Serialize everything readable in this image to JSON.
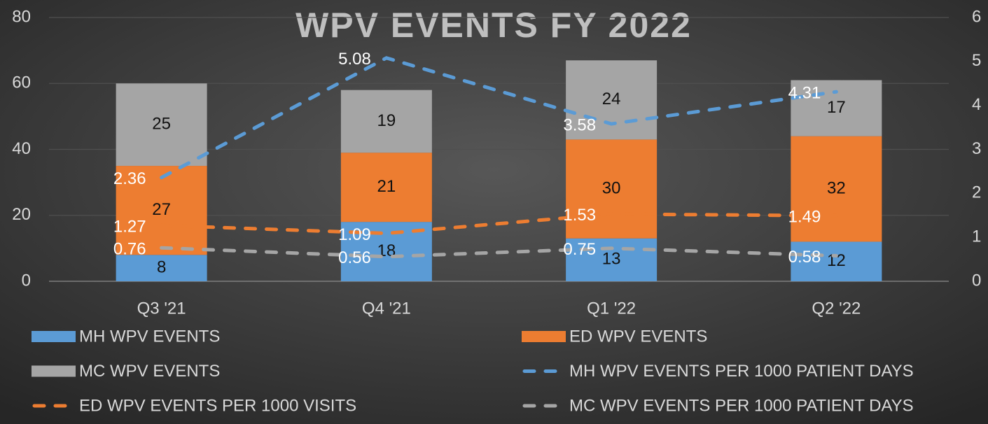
{
  "chart_data": {
    "type": "bar",
    "stacked": true,
    "title": "WPV EVENTS FY 2022",
    "categories": [
      "Q3 '21",
      "Q4 '21",
      "Q1 '22",
      "Q2 '22"
    ],
    "series": [
      {
        "name": "MH WPV EVENTS",
        "type": "bar",
        "color": "#5b9bd5",
        "values": [
          8,
          18,
          13,
          12
        ]
      },
      {
        "name": "ED WPV EVENTS",
        "type": "bar",
        "color": "#ed7d31",
        "values": [
          27,
          21,
          30,
          32
        ]
      },
      {
        "name": "MC WPV EVENTS",
        "type": "bar",
        "color": "#a5a5a5",
        "values": [
          25,
          19,
          24,
          17
        ]
      },
      {
        "name": "MH WPV EVENTS PER 1000 PATIENT DAYS",
        "type": "line",
        "axis": "y2",
        "dashed": true,
        "color": "#5b9bd5",
        "values": [
          2.36,
          5.08,
          3.58,
          4.31
        ]
      },
      {
        "name": "ED WPV EVENTS PER 1000 VISITS",
        "type": "line",
        "axis": "y2",
        "dashed": true,
        "color": "#ed7d31",
        "values": [
          1.27,
          1.09,
          1.53,
          1.49
        ]
      },
      {
        "name": "MC WPV EVENTS PER 1000 PATIENT DAYS",
        "type": "line",
        "axis": "y2",
        "dashed": true,
        "color": "#a5a5a5",
        "values": [
          0.76,
          0.56,
          0.75,
          0.58
        ]
      }
    ],
    "ylim": [
      0,
      80
    ],
    "yticks": [
      0,
      20,
      40,
      60,
      80
    ],
    "y2lim": [
      0,
      6
    ],
    "y2ticks": [
      0,
      1,
      2,
      3,
      4,
      5,
      6
    ],
    "grid": true,
    "legend": "bottom"
  }
}
